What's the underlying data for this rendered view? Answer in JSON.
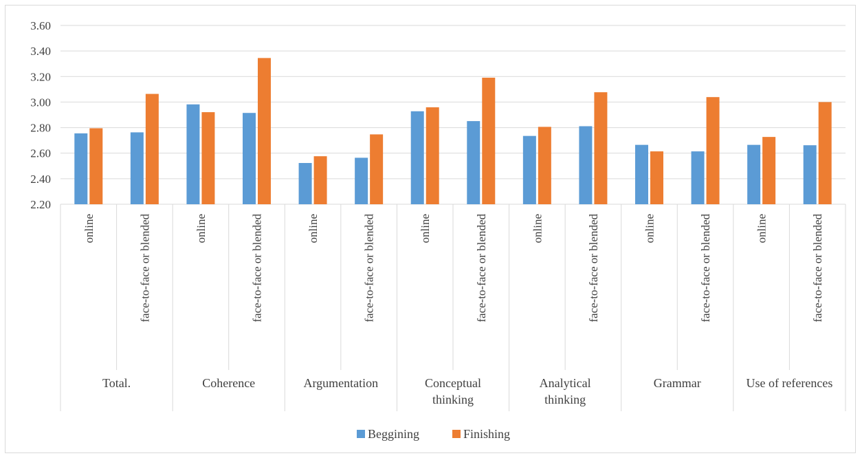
{
  "chart_data": {
    "type": "bar",
    "ylim": [
      2.2,
      3.6
    ],
    "y_ticks": [
      "2.20",
      "2.40",
      "2.60",
      "2.80",
      "3.00",
      "3.20",
      "3.40",
      "3.60"
    ],
    "grid": true,
    "legend_position": "bottom",
    "groups": [
      {
        "label_lines": [
          "Total."
        ],
        "subcategories": [
          "online",
          "face-to-face or blended"
        ]
      },
      {
        "label_lines": [
          "Coherence"
        ],
        "subcategories": [
          "online",
          "face-to-face or blended"
        ]
      },
      {
        "label_lines": [
          "Argumentation"
        ],
        "subcategories": [
          "online",
          "face-to-face or blended"
        ]
      },
      {
        "label_lines": [
          "Conceptual",
          "thinking"
        ],
        "subcategories": [
          "online",
          "face-to-face or blended"
        ]
      },
      {
        "label_lines": [
          "Analytical",
          "thinking"
        ],
        "subcategories": [
          "online",
          "face-to-face or blended"
        ]
      },
      {
        "label_lines": [
          "Grammar"
        ],
        "subcategories": [
          "online",
          "face-to-face or blended"
        ]
      },
      {
        "label_lines": [
          "Use of references"
        ],
        "subcategories": [
          "online",
          "face-to-face or blended"
        ]
      }
    ],
    "series": [
      {
        "name": "Beggining",
        "color": "#5b9bd5",
        "values": [
          2.755,
          2.763,
          2.982,
          2.915,
          2.523,
          2.564,
          2.928,
          2.851,
          2.735,
          2.811,
          2.665,
          2.614,
          2.665,
          2.662
        ]
      },
      {
        "name": "Finishing",
        "color": "#ed7d31",
        "values": [
          2.795,
          3.064,
          2.921,
          3.345,
          2.576,
          2.747,
          2.959,
          3.191,
          2.806,
          3.077,
          2.614,
          3.039,
          2.727,
          3.0
        ]
      }
    ]
  }
}
